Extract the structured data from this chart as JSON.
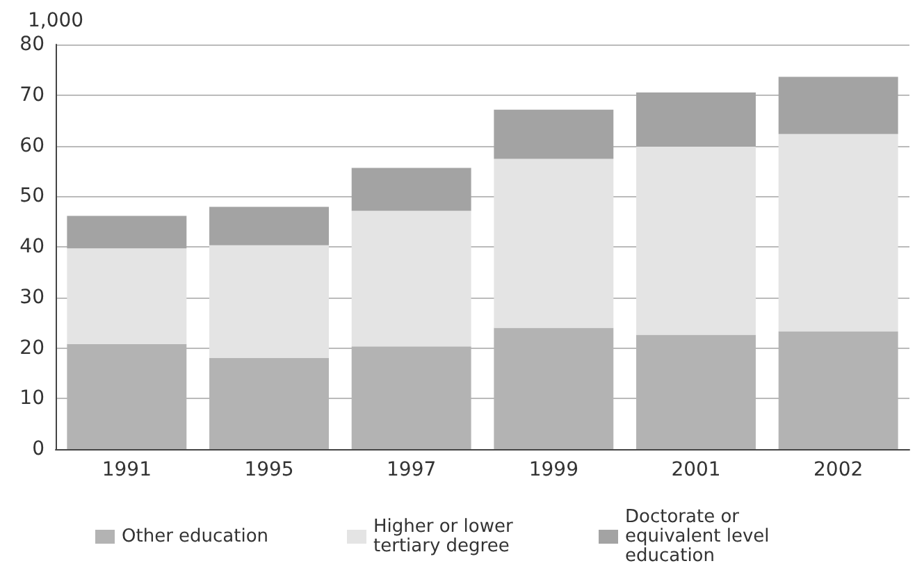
{
  "chart_data": {
    "type": "bar",
    "stacked": true,
    "ylabel": "1,000",
    "categories": [
      "1991",
      "1995",
      "1997",
      "1999",
      "2001",
      "2002"
    ],
    "series": [
      {
        "name": "Other education",
        "color": "#b3b3b3",
        "values": [
          20.8,
          18,
          20.3,
          24,
          22.6,
          23.3
        ]
      },
      {
        "name": "Higher or lower tertiary degree",
        "color": "#e4e4e4",
        "values": [
          18.9,
          22.3,
          26.8,
          33.4,
          37.2,
          39
        ]
      },
      {
        "name": "Doctorate or equivalent level education",
        "color": "#a3a3a3",
        "values": [
          6.4,
          7.6,
          8.5,
          9.7,
          10.7,
          11.3
        ]
      }
    ],
    "ylim": [
      0,
      80
    ],
    "yticks": [
      0,
      10,
      20,
      30,
      40,
      50,
      60,
      70,
      80
    ],
    "grid": "y",
    "legend": "bottom"
  }
}
